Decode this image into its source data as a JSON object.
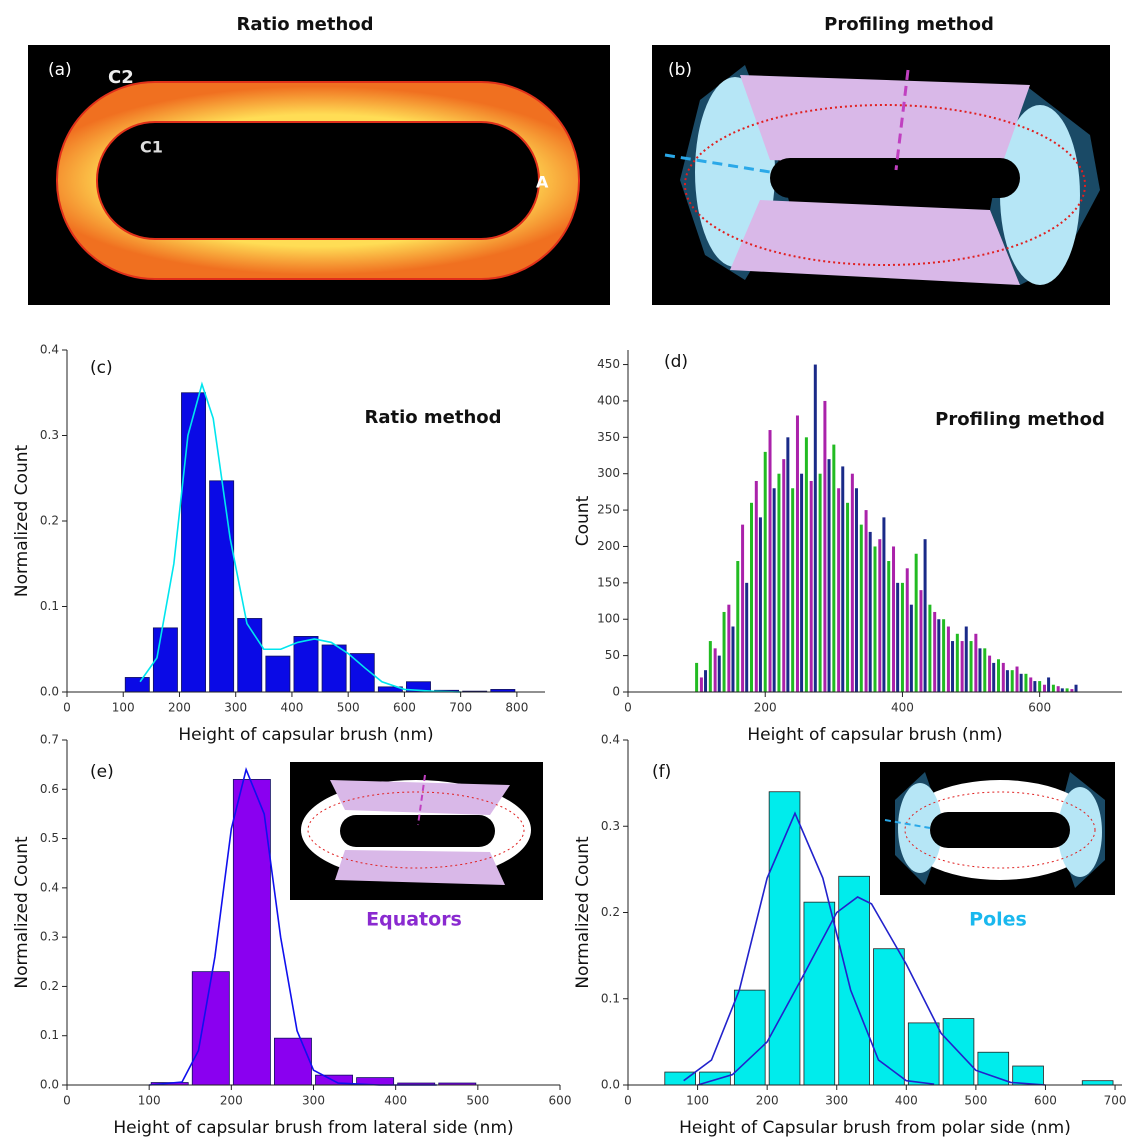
{
  "figure": {
    "column_titles": [
      "Ratio method",
      "Profiling method"
    ],
    "panel_a": {
      "label": "(a)",
      "outer": "C2",
      "inner": "C1",
      "area": "A"
    },
    "panel_b": {
      "label": "(b)"
    }
  },
  "chart_data": [
    {
      "type": "histogram",
      "panel_label": "(c)",
      "annotation": "Ratio method",
      "x_label": "Height of capsular brush (nm)",
      "y_label": "Normalized Count",
      "bins": [
        100,
        150,
        200,
        250,
        300,
        350,
        400,
        450,
        500,
        550,
        600,
        650,
        700,
        750,
        800
      ],
      "values": [
        0.017,
        0.075,
        0.35,
        0.247,
        0.086,
        0.042,
        0.065,
        0.055,
        0.045,
        0.006,
        0.012,
        0.002,
        0.001,
        0.003
      ],
      "color": "#0a0ae6",
      "curves": [
        {
          "color": "#00e5ee",
          "x": [
            130,
            160,
            190,
            215,
            240,
            260,
            290,
            320,
            350,
            380,
            410,
            440,
            470,
            500,
            530,
            560,
            600,
            650,
            700
          ],
          "y": [
            0.012,
            0.04,
            0.15,
            0.3,
            0.36,
            0.32,
            0.18,
            0.08,
            0.05,
            0.05,
            0.058,
            0.062,
            0.058,
            0.045,
            0.028,
            0.012,
            0.003,
            0.001,
            0
          ]
        }
      ],
      "xlim": [
        0,
        850
      ],
      "xticks": [
        0,
        100,
        200,
        300,
        400,
        500,
        600,
        700,
        800
      ],
      "ylim": [
        0,
        0.4
      ],
      "yticks": [
        {
          "value": 0,
          "label": "0.0"
        },
        0.1,
        0.2,
        0.3,
        0.4
      ]
    },
    {
      "type": "bar",
      "panel_label": "(d)",
      "annotation": "Profiling method",
      "x_label": "Height of capsular brush (nm)",
      "y_label": "Count",
      "series": [
        {
          "color": "#22bb22",
          "x": [
            100,
            120,
            140,
            160,
            180,
            200,
            220,
            240,
            260,
            280,
            300,
            320,
            340,
            360,
            380,
            400,
            420,
            440,
            460,
            480,
            500,
            520,
            540,
            560,
            580,
            600,
            620,
            640
          ],
          "values": [
            40,
            70,
            110,
            180,
            260,
            330,
            300,
            280,
            350,
            300,
            340,
            260,
            230,
            200,
            180,
            150,
            190,
            120,
            100,
            80,
            70,
            60,
            45,
            30,
            25,
            15,
            10,
            5
          ]
        },
        {
          "color": "#aa22aa",
          "x": [
            107,
            127,
            147,
            167,
            187,
            207,
            227,
            247,
            267,
            287,
            307,
            327,
            347,
            367,
            387,
            407,
            427,
            447,
            467,
            487,
            507,
            527,
            547,
            567,
            587,
            607,
            627,
            647
          ],
          "values": [
            20,
            60,
            120,
            230,
            290,
            360,
            320,
            380,
            290,
            400,
            280,
            300,
            250,
            210,
            200,
            170,
            140,
            110,
            90,
            70,
            80,
            50,
            40,
            35,
            20,
            10,
            8,
            4
          ]
        },
        {
          "color": "#1a2a88",
          "x": [
            113,
            133,
            153,
            173,
            193,
            213,
            233,
            253,
            273,
            293,
            313,
            333,
            353,
            373,
            393,
            413,
            433,
            453,
            473,
            493,
            513,
            533,
            553,
            573,
            593,
            613,
            633,
            653
          ],
          "values": [
            30,
            50,
            90,
            150,
            240,
            280,
            350,
            300,
            450,
            320,
            310,
            280,
            220,
            240,
            150,
            120,
            210,
            100,
            70,
            90,
            60,
            40,
            30,
            25,
            15,
            20,
            5,
            10
          ]
        }
      ],
      "xlim": [
        0,
        720
      ],
      "xticks": [
        0,
        200,
        400,
        600
      ],
      "ylim": [
        0,
        470
      ],
      "yticks": [
        0,
        50,
        100,
        150,
        200,
        250,
        300,
        350,
        400,
        450
      ]
    },
    {
      "type": "histogram",
      "panel_label": "(e)",
      "inset_label": "Equators",
      "x_label": "Height of capsular brush from lateral side (nm)",
      "y_label": "Normalized Count",
      "bins": [
        100,
        150,
        200,
        250,
        300,
        350,
        400,
        450,
        500
      ],
      "values": [
        0.005,
        0.23,
        0.62,
        0.095,
        0.02,
        0.015,
        0.004,
        0.004
      ],
      "color": "#8a00f0",
      "curves": [
        {
          "color": "#1010ee",
          "x": [
            100,
            140,
            160,
            180,
            200,
            218,
            240,
            260,
            280,
            300,
            330,
            380,
            450
          ],
          "y": [
            0,
            0.006,
            0.07,
            0.26,
            0.52,
            0.64,
            0.55,
            0.3,
            0.11,
            0.03,
            0.004,
            0,
            0
          ]
        }
      ],
      "xlim": [
        0,
        600
      ],
      "xticks": [
        0,
        100,
        200,
        300,
        400,
        500,
        600
      ],
      "ylim": [
        0,
        0.7
      ],
      "yticks": [
        {
          "value": 0,
          "label": "0.0"
        },
        0.1,
        0.2,
        0.3,
        0.4,
        0.5,
        0.6,
        0.7
      ]
    },
    {
      "type": "histogram",
      "panel_label": "(f)",
      "inset_label": "Poles",
      "x_label": "Height of Capsular brush from polar side (nm)",
      "y_label": "Normalized Count",
      "bins": [
        50,
        100,
        150,
        200,
        250,
        300,
        350,
        400,
        450,
        500,
        550,
        600,
        650,
        700
      ],
      "values": [
        0.015,
        0.015,
        0.11,
        0.34,
        0.212,
        0.242,
        0.158,
        0.072,
        0.077,
        0.038,
        0.022,
        0,
        0.005
      ],
      "color": "#00ecec",
      "curves": [
        {
          "color": "#2222cc",
          "x": [
            80,
            120,
            160,
            200,
            240,
            280,
            320,
            360,
            400,
            440
          ],
          "y": [
            0.005,
            0.029,
            0.11,
            0.24,
            0.315,
            0.24,
            0.11,
            0.029,
            0.005,
            0.001
          ]
        },
        {
          "color": "#2222cc",
          "x": [
            100,
            150,
            200,
            250,
            300,
            330,
            350,
            400,
            450,
            500,
            550,
            600
          ],
          "y": [
            0,
            0.012,
            0.05,
            0.124,
            0.2,
            0.218,
            0.21,
            0.14,
            0.06,
            0.017,
            0.003,
            0
          ]
        }
      ],
      "xlim": [
        0,
        710
      ],
      "xticks": [
        0,
        100,
        200,
        300,
        400,
        500,
        600,
        700
      ],
      "ylim": [
        0,
        0.4
      ],
      "yticks": [
        {
          "value": 0,
          "label": "0.0"
        },
        0.1,
        0.2,
        0.3,
        0.4
      ]
    }
  ]
}
